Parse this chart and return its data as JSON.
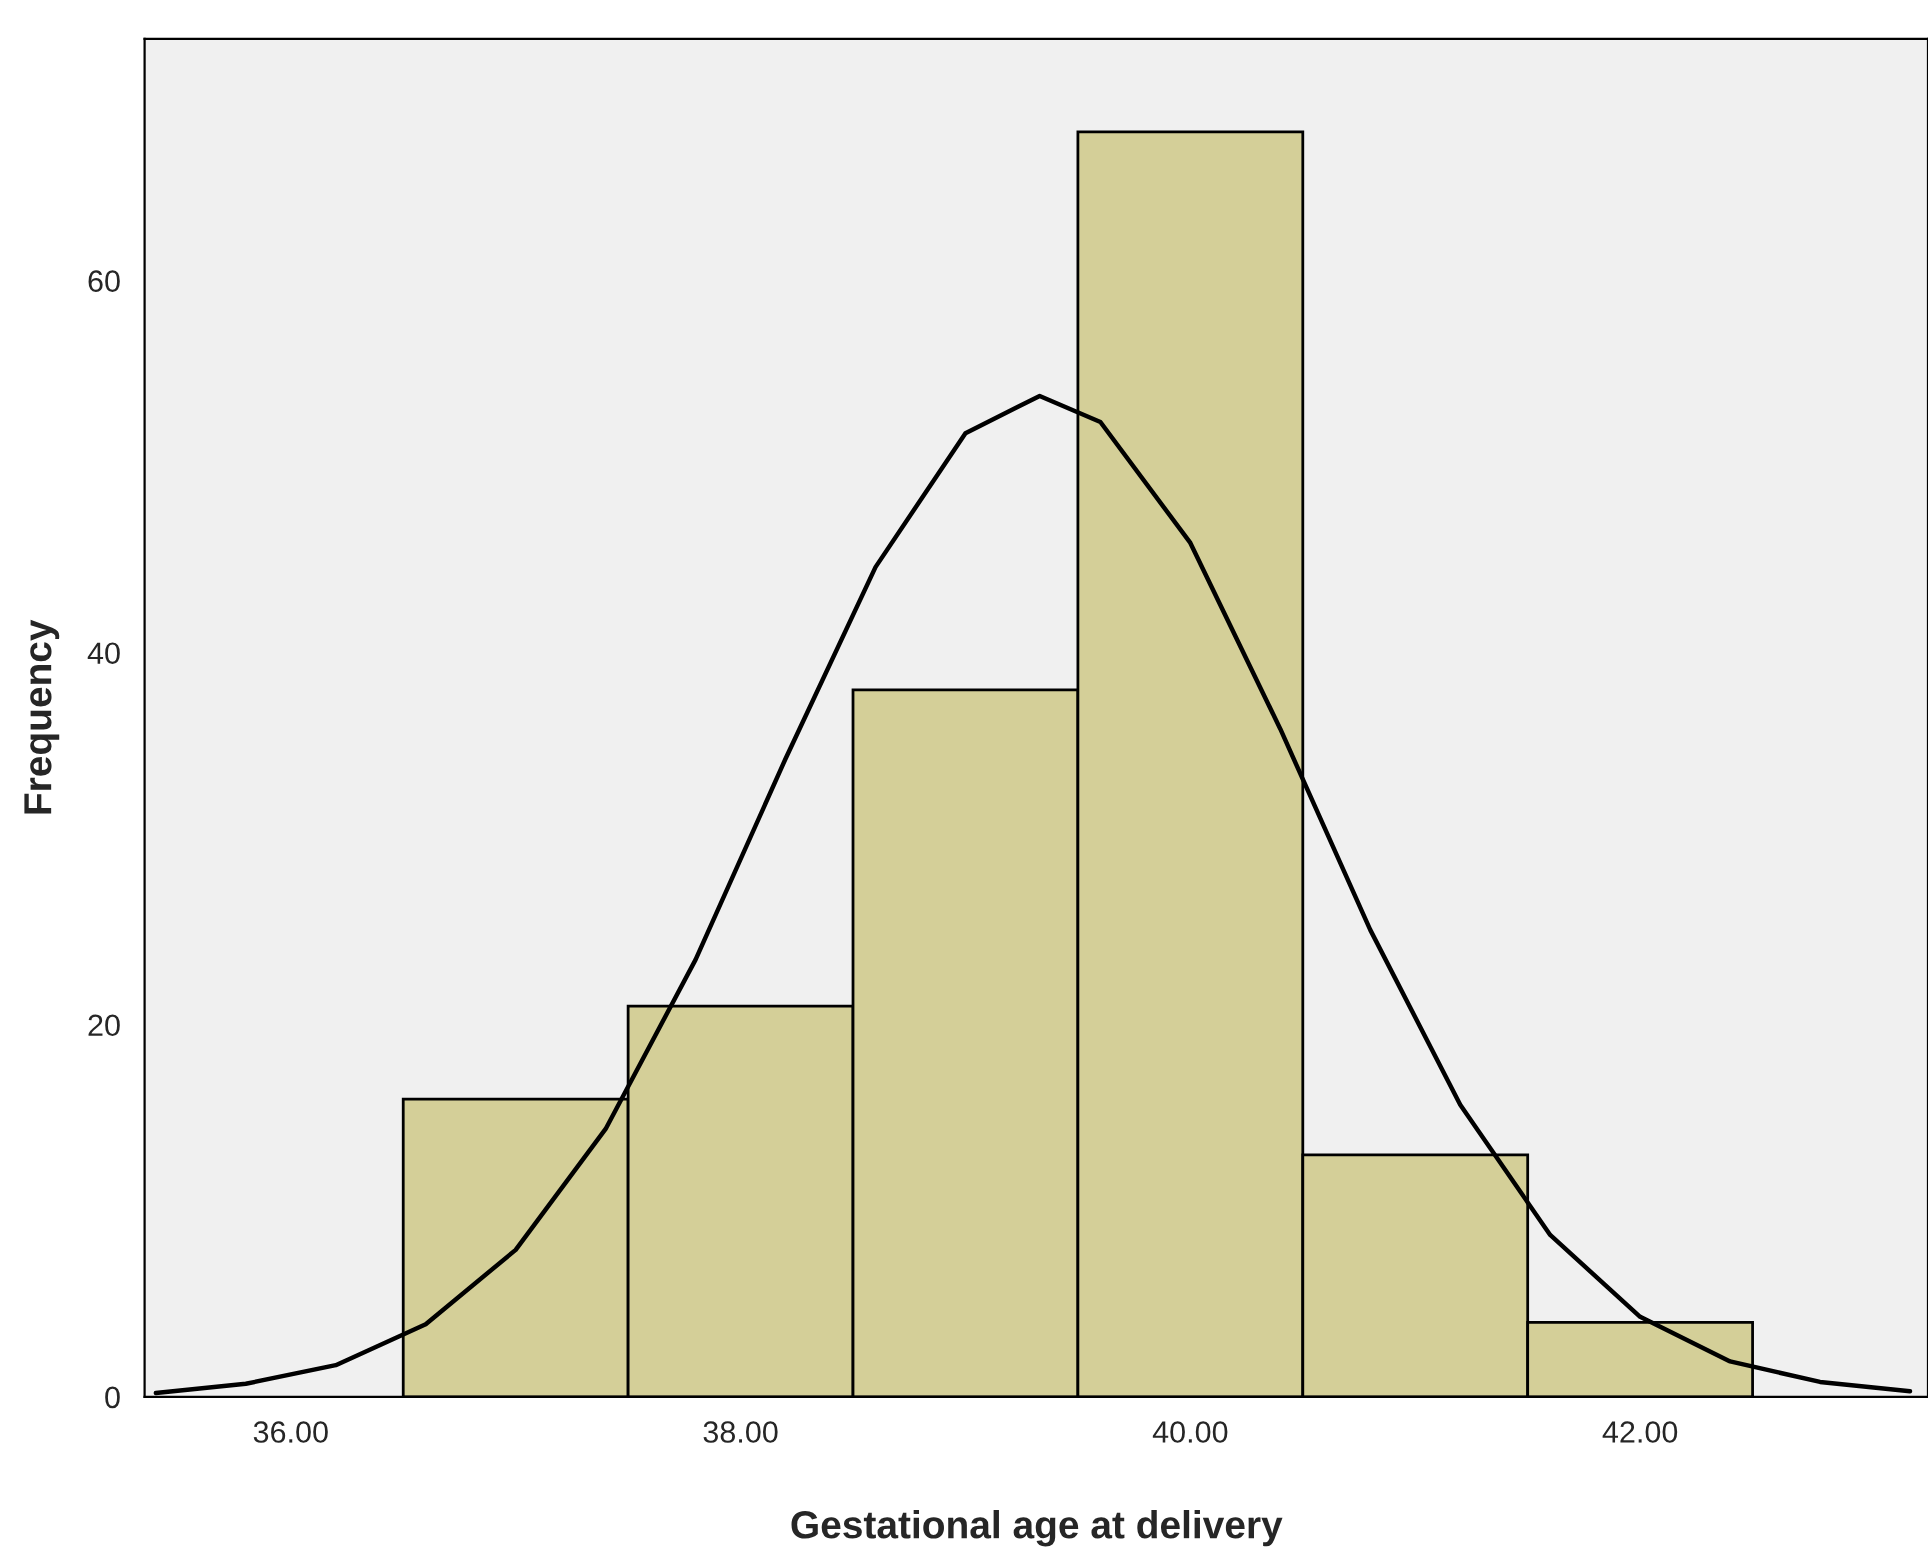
{
  "chart_data": {
    "type": "histogram",
    "xlabel": "Gestational age at delivery",
    "ylabel": "Frequency",
    "series": [
      {
        "color": "#d4cf98",
        "bins": [
          36.5,
          37.5,
          38.5,
          39.5,
          40.5,
          41.5,
          42.5
        ],
        "values": [
          16,
          21,
          38,
          68,
          13,
          4
        ]
      },
      {
        "type": "line",
        "color": "#000000",
        "x": [
          35.4,
          35.8,
          36.2,
          36.6,
          37.0,
          37.4,
          37.8,
          38.2,
          38.6,
          39.0,
          39.33,
          39.6,
          40.0,
          40.4,
          40.8,
          41.2,
          41.6,
          42.0,
          42.4,
          42.8,
          43.2
        ],
        "values": [
          0.2,
          0.7,
          1.7,
          3.9,
          7.9,
          14.4,
          23.5,
          34.3,
          44.6,
          51.8,
          53.8,
          52.4,
          45.9,
          35.9,
          25.1,
          15.7,
          8.7,
          4.3,
          1.9,
          0.8,
          0.3
        ]
      }
    ],
    "xlim": [
      35.35,
      43.28
    ],
    "ylim": [
      0,
      73
    ],
    "xticks": [
      {
        "value": 36,
        "label": "36.00"
      },
      {
        "value": 38,
        "label": "38.00"
      },
      {
        "value": 40,
        "label": "40.00"
      },
      {
        "value": 42,
        "label": "42.00"
      }
    ],
    "yticks": [
      0,
      20,
      40,
      60
    ],
    "grid": false
  }
}
